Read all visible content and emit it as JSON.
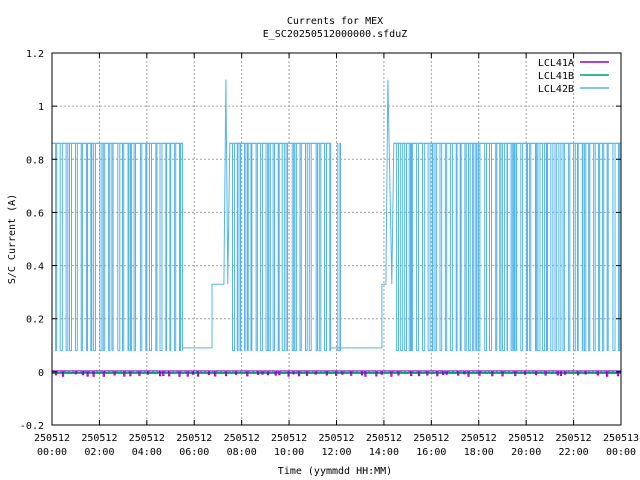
{
  "chart_data": {
    "type": "line",
    "title": "Currents for MEX",
    "subtitle": "E_SC20250512000000.sfduZ",
    "xlabel": "Time (yymmdd HH:MM)",
    "ylabel": "S/C Current (A)",
    "xlim": [
      "2025-05-12 00:00",
      "2025-05-13 00:00"
    ],
    "ylim": [
      -0.2,
      1.2
    ],
    "yticks": [
      "-0.2",
      "0",
      "0.2",
      "0.4",
      "0.6",
      "0.8",
      "1",
      "1.2"
    ],
    "xticks": [
      {
        "date": "250512",
        "time": "00:00"
      },
      {
        "date": "250512",
        "time": "02:00"
      },
      {
        "date": "250512",
        "time": "04:00"
      },
      {
        "date": "250512",
        "time": "06:00"
      },
      {
        "date": "250512",
        "time": "08:00"
      },
      {
        "date": "250512",
        "time": "10:00"
      },
      {
        "date": "250512",
        "time": "12:00"
      },
      {
        "date": "250512",
        "time": "14:00"
      },
      {
        "date": "250512",
        "time": "16:00"
      },
      {
        "date": "250512",
        "time": "18:00"
      },
      {
        "date": "250512",
        "time": "20:00"
      },
      {
        "date": "250512",
        "time": "22:00"
      },
      {
        "date": "250513",
        "time": "00:00"
      }
    ],
    "grid": true,
    "legend_position": "top-right",
    "series": [
      {
        "name": "LCL41A",
        "color": "#9400d3",
        "description": "near zero throughout, small spikes to about -0.01",
        "x": [
          "00:00",
          "24:00"
        ],
        "values": [
          0.0,
          0.0
        ]
      },
      {
        "name": "LCL41B",
        "color": "#009e73",
        "description": "near zero throughout",
        "x": [
          "00:00",
          "24:00"
        ],
        "values": [
          0.0,
          0.0
        ]
      },
      {
        "name": "LCL42B",
        "color": "#56b4e9",
        "description": "rapid square-wave switching between about 0.08 and 0.86 A",
        "x": [
          "00:00",
          "05:30",
          "05:30",
          "06:45",
          "06:45",
          "07:15",
          "07:20",
          "07:25",
          "07:30",
          "11:45",
          "11:45",
          "13:55",
          "13:55",
          "14:05",
          "14:10",
          "14:20",
          "14:25",
          "24:00"
        ],
        "values": [
          0.86,
          0.86,
          0.09,
          0.09,
          0.33,
          0.33,
          1.1,
          0.33,
          0.86,
          0.86,
          0.09,
          0.09,
          0.33,
          0.33,
          1.1,
          0.33,
          0.86,
          0.86
        ],
        "switching_low": 0.08,
        "switching_high": 0.86,
        "switching_segments": [
          [
            "00:00",
            "05:30"
          ],
          [
            "07:30",
            "11:45"
          ],
          [
            "12:00",
            "12:10"
          ],
          [
            "14:25",
            "24:00"
          ]
        ]
      }
    ]
  }
}
